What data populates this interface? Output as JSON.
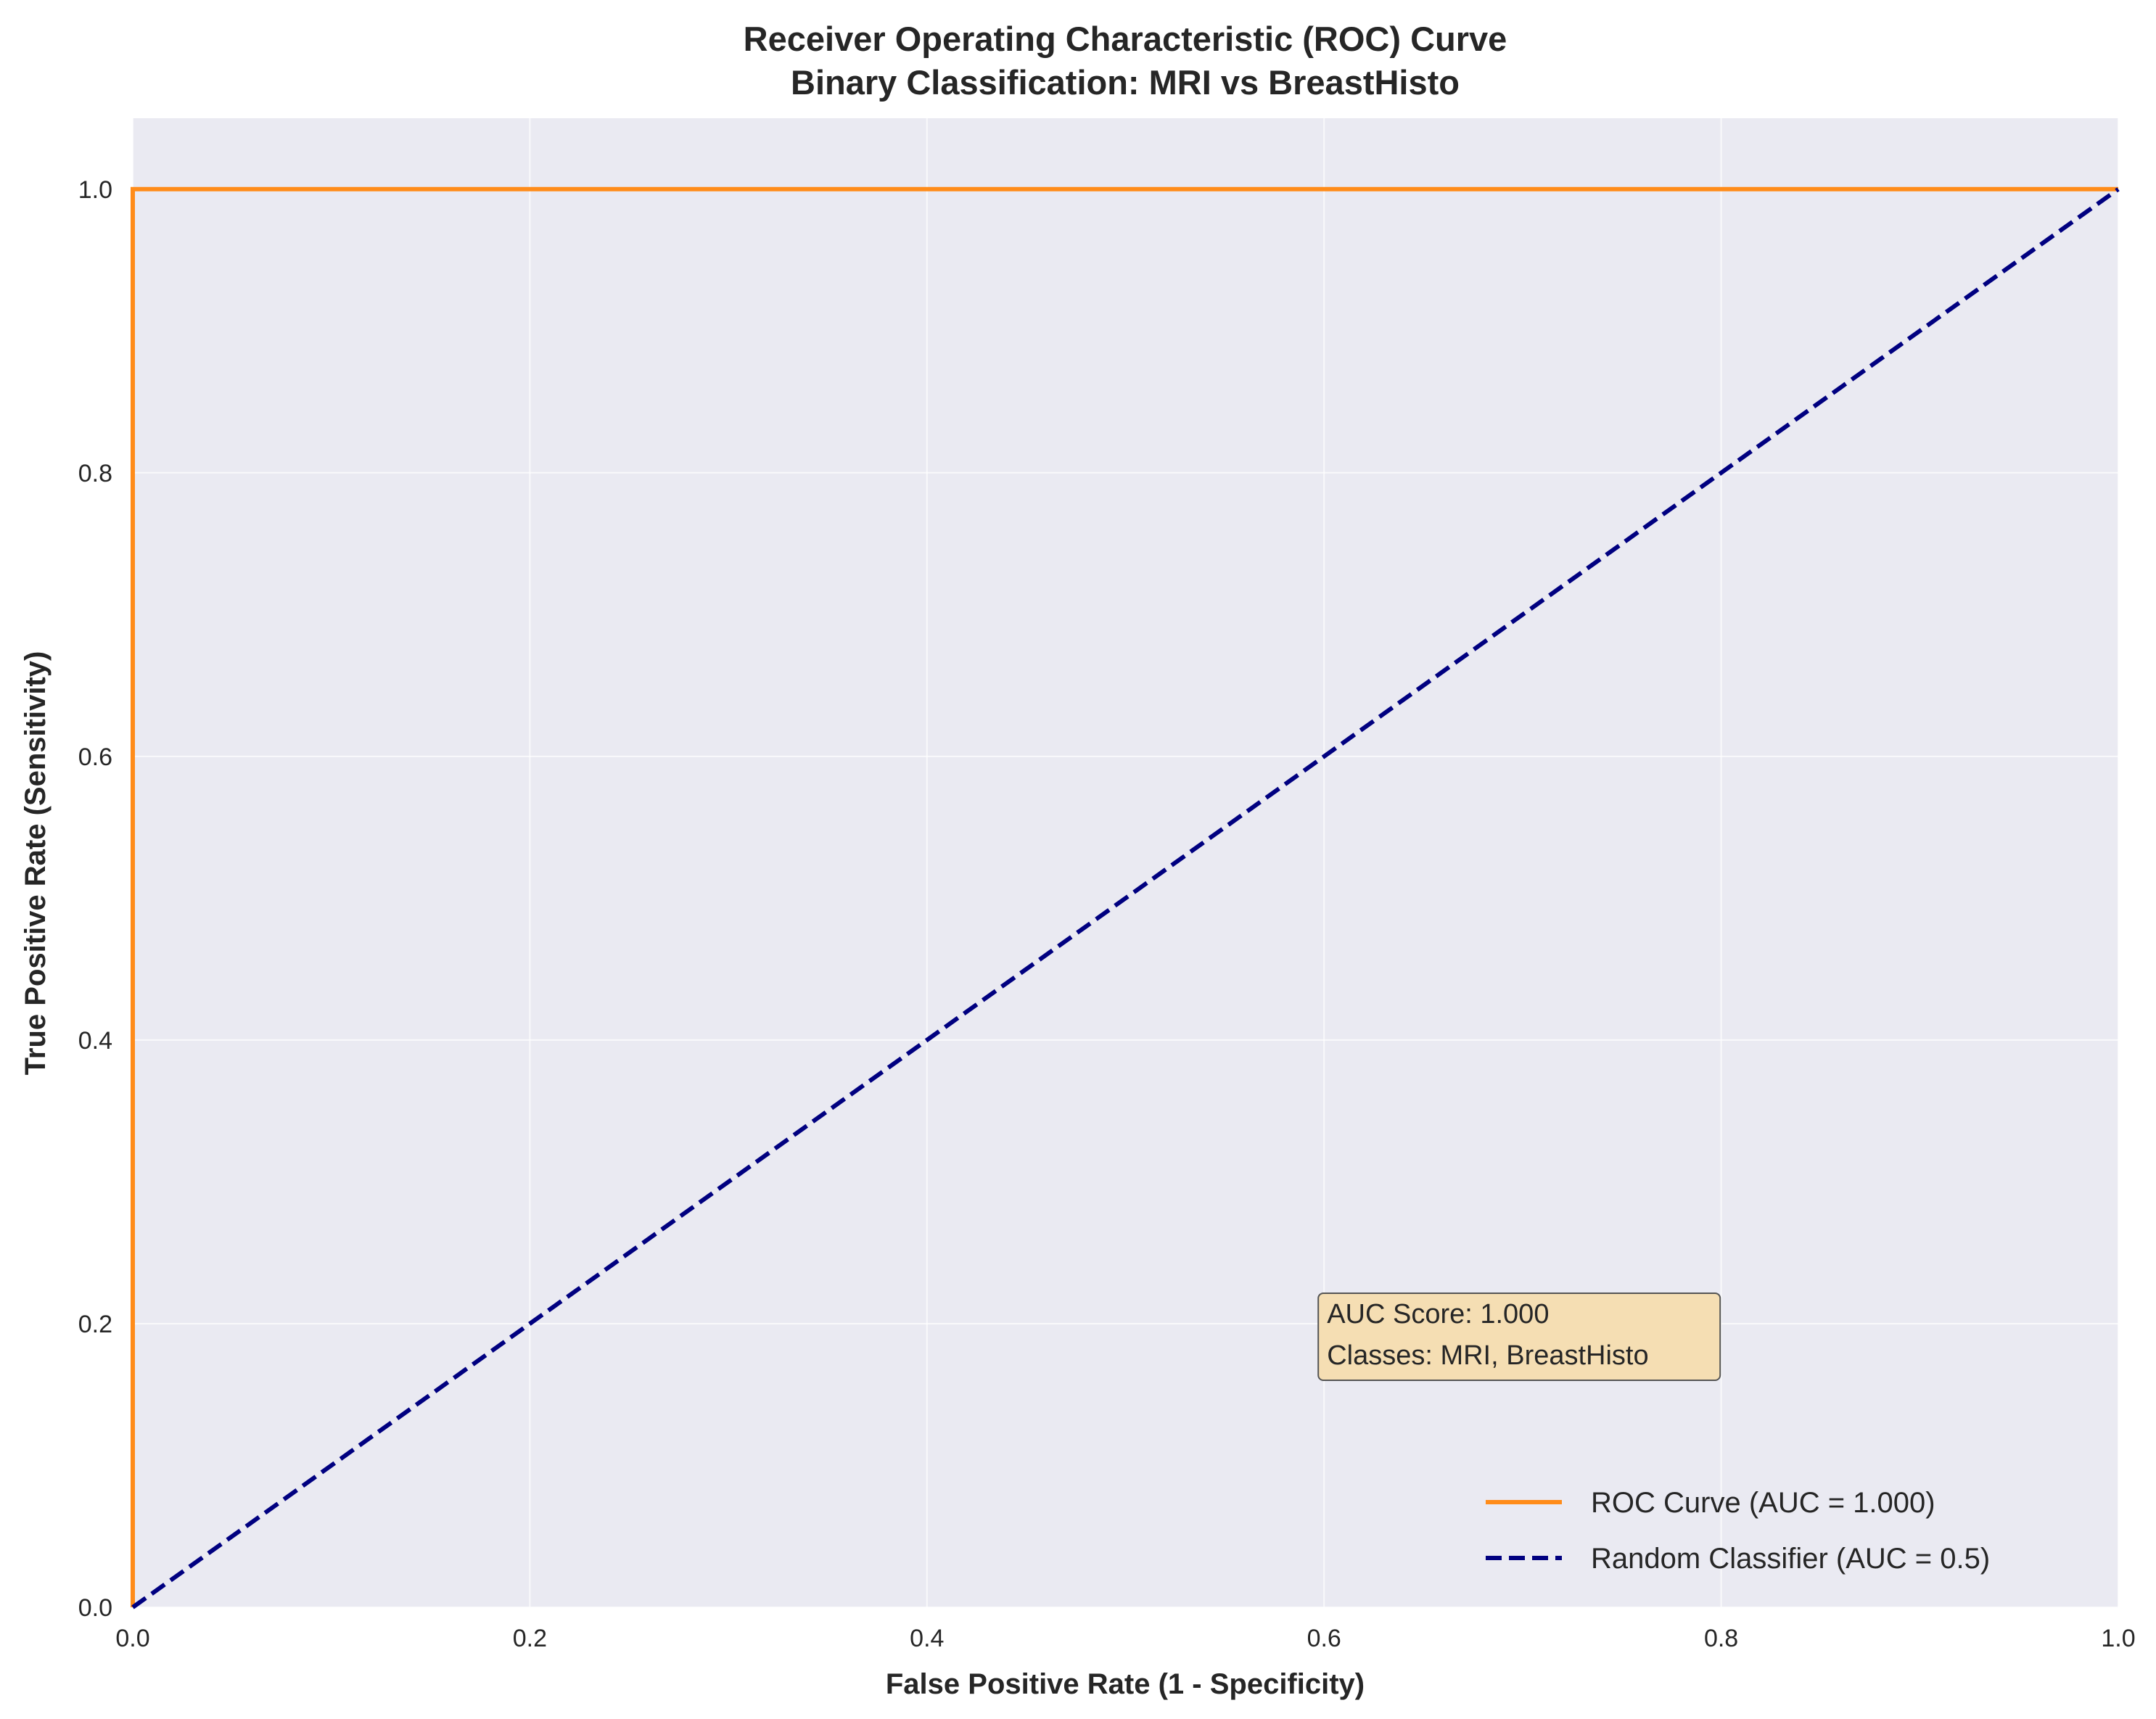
{
  "chart_data": {
    "type": "line",
    "title_lines": [
      "Receiver Operating Characteristic (ROC) Curve",
      "Binary Classification: MRI vs BreastHisto"
    ],
    "xlabel": "False Positive Rate (1 - Specificity)",
    "ylabel": "True Positive Rate (Sensitivity)",
    "xlim": [
      0.0,
      1.0
    ],
    "ylim": [
      0.0,
      1.05
    ],
    "xticks": [
      0.0,
      0.2,
      0.4,
      0.6,
      0.8,
      1.0
    ],
    "xtick_labels": [
      "0.0",
      "0.2",
      "0.4",
      "0.6",
      "0.8",
      "1.0"
    ],
    "yticks": [
      0.0,
      0.2,
      0.4,
      0.6,
      0.8,
      1.0
    ],
    "ytick_labels": [
      "0.0",
      "0.2",
      "0.4",
      "0.6",
      "0.8",
      "1.0"
    ],
    "grid": true,
    "legend_position": "lower-right",
    "series": [
      {
        "name": "ROC Curve (AUC = 1.000)",
        "color": "#ff8c1a",
        "dash": "solid",
        "x": [
          0.0,
          0.0,
          1.0
        ],
        "y": [
          0.0,
          1.0,
          1.0
        ]
      },
      {
        "name": "Random Classifier (AUC = 0.5)",
        "color": "#000080",
        "dash": "dashed",
        "x": [
          0.0,
          1.0
        ],
        "y": [
          0.0,
          1.0
        ]
      }
    ],
    "annotation": {
      "lines": [
        "AUC Score: 1.000",
        "Classes: MRI, BreastHisto"
      ],
      "x": 0.6,
      "y": 0.2,
      "box_color": "#f5deb3"
    },
    "colors": {
      "plot_background": "#eaeaf2",
      "grid": "#ffffff",
      "text": "#262626"
    }
  }
}
